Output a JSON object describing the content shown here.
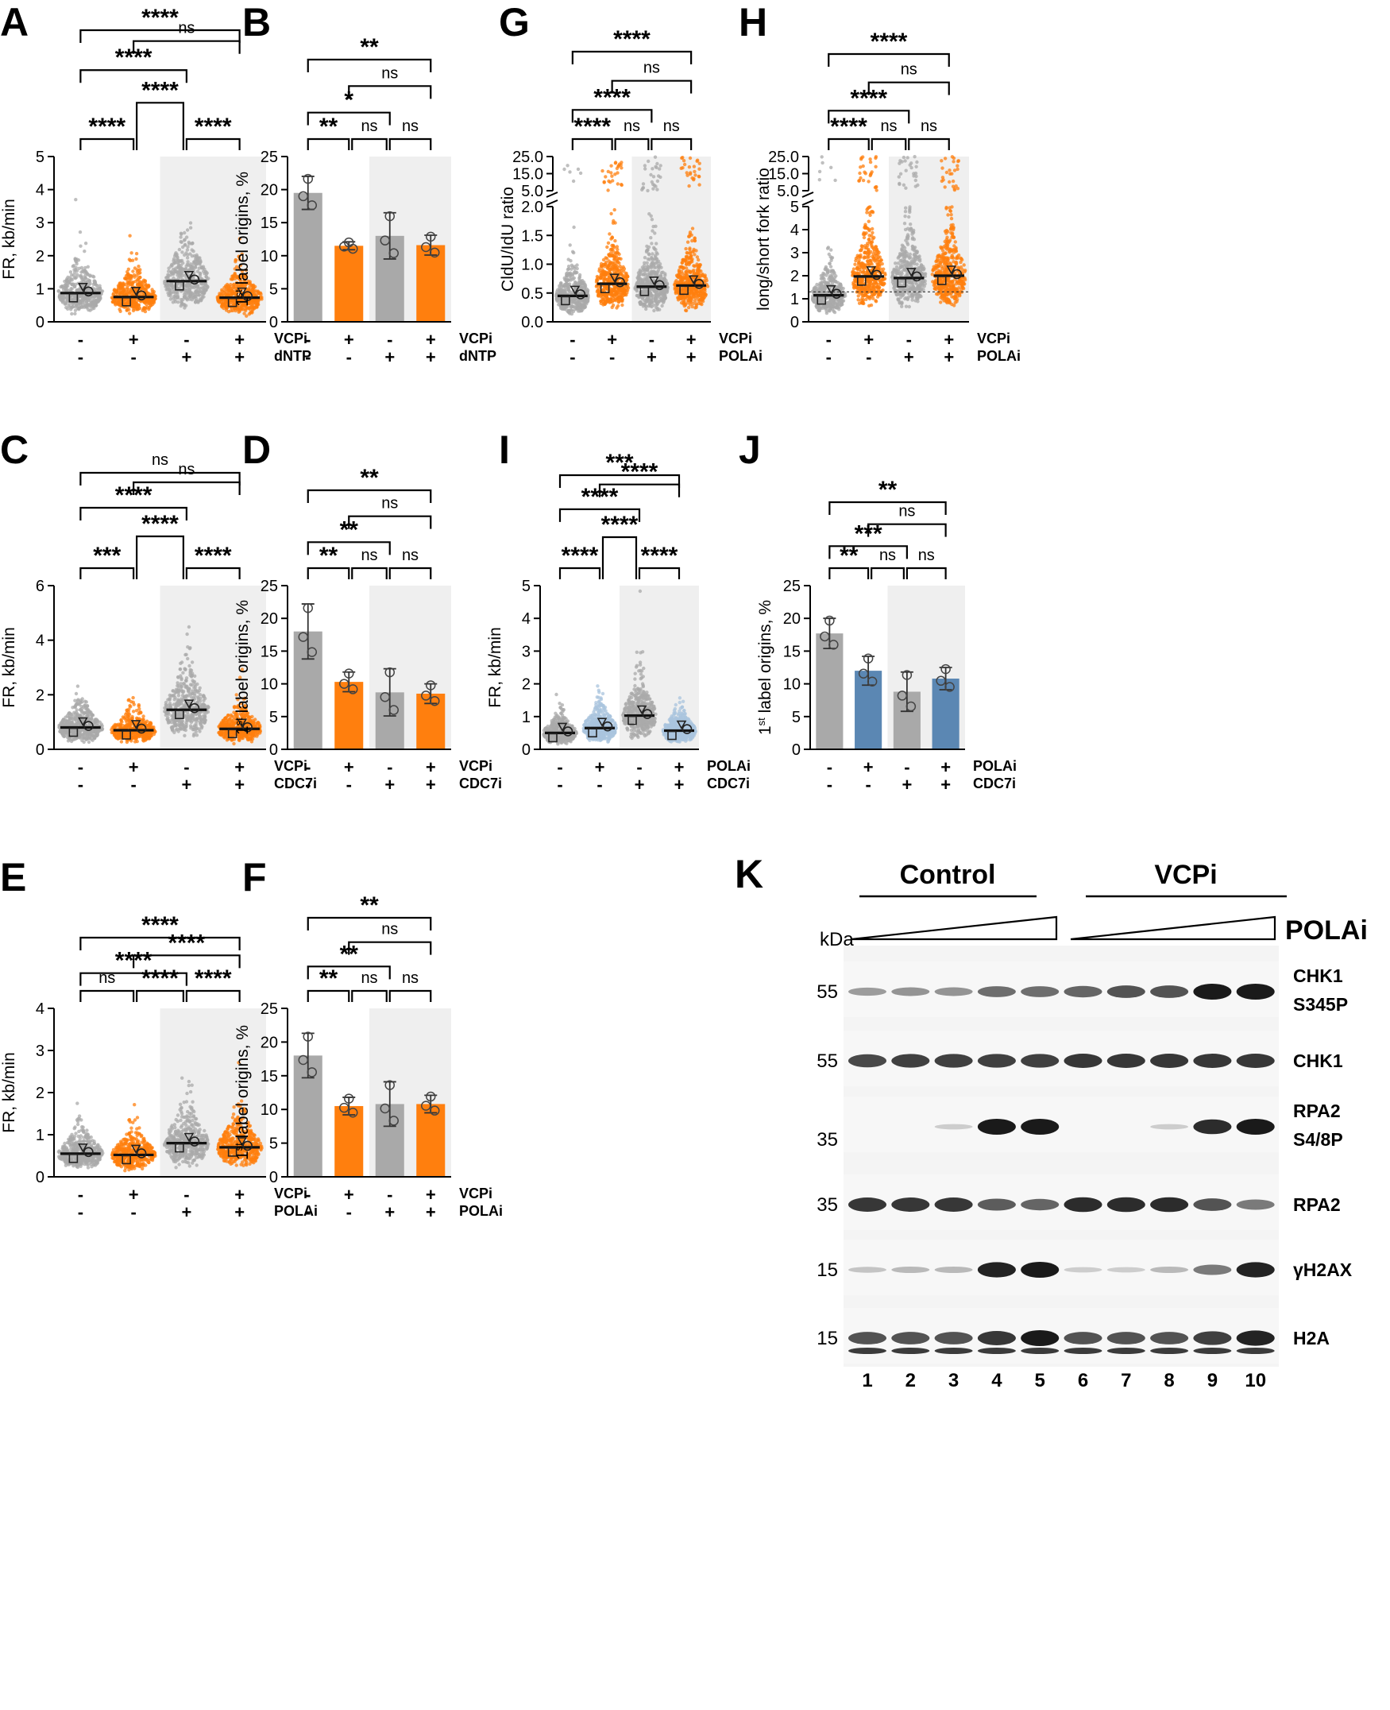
{
  "colors": {
    "gray": "#a9a9a9",
    "orange": "#ff7f0e",
    "blue": "#5b87b3",
    "lightblue": "#a9c4dd",
    "shade": "#efefef",
    "band": "#1a1a1a"
  },
  "chart_data": [
    {
      "id": "A",
      "panel_label": "A",
      "type": "scatter",
      "ylabel": "FR, kb/min",
      "yticks": [
        "0",
        "1",
        "2",
        "3",
        "4",
        "5"
      ],
      "ylim": [
        0,
        5
      ],
      "medians": [
        0.87,
        0.75,
        1.23,
        0.73
      ],
      "row_labels": [
        "VCPi",
        "dNTP"
      ],
      "signs": [
        [
          "-",
          "+",
          "-",
          "+"
        ],
        [
          "-",
          "-",
          "+",
          "+"
        ]
      ],
      "brackets": [
        {
          "i": 0,
          "j": 1,
          "label": "****"
        },
        {
          "i": 2,
          "j": 3,
          "label": "****"
        },
        {
          "i": 1,
          "j": 2,
          "label": "****"
        },
        {
          "i": 0,
          "j": 2,
          "label": "****"
        },
        {
          "i": 1,
          "j": 3,
          "label": "ns"
        },
        {
          "i": 0,
          "j": 3,
          "label": "****"
        }
      ]
    },
    {
      "id": "B",
      "panel_label": "B",
      "type": "bar",
      "ylabel": "1st label origins, %",
      "yticks": [
        "0",
        "5",
        "10",
        "15",
        "20",
        "25"
      ],
      "ylim": [
        0,
        25
      ],
      "values": [
        19.5,
        11.5,
        13,
        11.6
      ],
      "errors": [
        2.5,
        0.6,
        3.5,
        1.5
      ],
      "row_labels": [
        "VCPi",
        "dNTP"
      ],
      "signs": [
        [
          "-",
          "+",
          "-",
          "+"
        ],
        [
          "-",
          "-",
          "+",
          "+"
        ]
      ],
      "brackets": [
        {
          "i": 0,
          "j": 1,
          "label": "**"
        },
        {
          "i": 1,
          "j": 2,
          "label": "ns"
        },
        {
          "i": 2,
          "j": 3,
          "label": "ns"
        },
        {
          "i": 0,
          "j": 2,
          "label": "*"
        },
        {
          "i": 1,
          "j": 3,
          "label": "ns"
        },
        {
          "i": 0,
          "j": 3,
          "label": "**"
        }
      ]
    },
    {
      "id": "G",
      "panel_label": "G",
      "type": "scatter",
      "ylabel": "CldU/IdU ratio",
      "yticks": [
        "0.0",
        "0.5",
        "1.0",
        "1.5",
        "2.0"
      ],
      "ylim": [
        0,
        2
      ],
      "upper_ticks": [
        "5.0",
        "15.0",
        "25.0"
      ],
      "upper_range": [
        5,
        25
      ],
      "medians": [
        0.45,
        0.66,
        0.61,
        0.63
      ],
      "row_labels": [
        "VCPi",
        "POLAi"
      ],
      "signs": [
        [
          "-",
          "+",
          "-",
          "+"
        ],
        [
          "-",
          "-",
          "+",
          "+"
        ]
      ],
      "brackets": [
        {
          "i": 0,
          "j": 1,
          "label": "****"
        },
        {
          "i": 1,
          "j": 2,
          "label": "ns"
        },
        {
          "i": 2,
          "j": 3,
          "label": "ns"
        },
        {
          "i": 0,
          "j": 2,
          "label": "****"
        },
        {
          "i": 1,
          "j": 3,
          "label": "ns"
        },
        {
          "i": 0,
          "j": 3,
          "label": "****"
        }
      ]
    },
    {
      "id": "H",
      "panel_label": "H",
      "type": "scatter",
      "ylabel": "long/short fork ratio",
      "yticks": [
        "0",
        "1",
        "2",
        "3",
        "4",
        "5"
      ],
      "ylim": [
        0,
        5
      ],
      "upper_ticks": [
        "5.0",
        "15.0",
        "25.0"
      ],
      "upper_range": [
        5,
        25
      ],
      "medians": [
        1.15,
        1.97,
        1.9,
        2.0
      ],
      "reference_line": 1.3,
      "row_labels": [
        "VCPi",
        "POLAi"
      ],
      "signs": [
        [
          "-",
          "+",
          "-",
          "+"
        ],
        [
          "-",
          "-",
          "+",
          "+"
        ]
      ],
      "brackets": [
        {
          "i": 0,
          "j": 1,
          "label": "****"
        },
        {
          "i": 1,
          "j": 2,
          "label": "ns"
        },
        {
          "i": 2,
          "j": 3,
          "label": "ns"
        },
        {
          "i": 0,
          "j": 2,
          "label": "****"
        },
        {
          "i": 1,
          "j": 3,
          "label": "ns"
        },
        {
          "i": 0,
          "j": 3,
          "label": "****"
        }
      ]
    },
    {
      "id": "C",
      "panel_label": "C",
      "type": "scatter",
      "ylabel": "FR, kb/min",
      "yticks": [
        "0",
        "2",
        "4",
        "6"
      ],
      "ylim": [
        0,
        6
      ],
      "medians": [
        0.8,
        0.7,
        1.45,
        0.75
      ],
      "row_labels": [
        "VCPi",
        "CDC7i"
      ],
      "signs": [
        [
          "-",
          "+",
          "-",
          "+"
        ],
        [
          "-",
          "-",
          "+",
          "+"
        ]
      ],
      "brackets": [
        {
          "i": 0,
          "j": 1,
          "label": "***"
        },
        {
          "i": 2,
          "j": 3,
          "label": "****"
        },
        {
          "i": 1,
          "j": 2,
          "label": "****"
        },
        {
          "i": 0,
          "j": 2,
          "label": "****"
        },
        {
          "i": 1,
          "j": 3,
          "label": "ns"
        },
        {
          "i": 0,
          "j": 3,
          "label": "ns"
        }
      ]
    },
    {
      "id": "D",
      "panel_label": "D",
      "type": "bar",
      "ylabel": "1st label origins, %",
      "yticks": [
        "0",
        "5",
        "10",
        "15",
        "20",
        "25"
      ],
      "ylim": [
        0,
        25
      ],
      "values": [
        18,
        10.3,
        8.7,
        8.5
      ],
      "errors": [
        4.2,
        1.5,
        3.6,
        1.5
      ],
      "row_labels": [
        "VCPi",
        "CDC7i"
      ],
      "signs": [
        [
          "-",
          "+",
          "-",
          "+"
        ],
        [
          "-",
          "-",
          "+",
          "+"
        ]
      ],
      "brackets": [
        {
          "i": 0,
          "j": 1,
          "label": "**"
        },
        {
          "i": 1,
          "j": 2,
          "label": "ns"
        },
        {
          "i": 2,
          "j": 3,
          "label": "ns"
        },
        {
          "i": 0,
          "j": 2,
          "label": "**"
        },
        {
          "i": 1,
          "j": 3,
          "label": "ns"
        },
        {
          "i": 0,
          "j": 3,
          "label": "**"
        }
      ]
    },
    {
      "id": "I",
      "panel_label": "I",
      "type": "scatter",
      "ylabel": "FR, kb/min",
      "yticks": [
        "0",
        "1",
        "2",
        "3",
        "4",
        "5"
      ],
      "ylim": [
        0,
        5
      ],
      "medians": [
        0.5,
        0.65,
        1.03,
        0.57
      ],
      "row_labels": [
        "POLAi",
        "CDC7i"
      ],
      "signs": [
        [
          "-",
          "+",
          "-",
          "+"
        ],
        [
          "-",
          "-",
          "+",
          "+"
        ]
      ],
      "brackets": [
        {
          "i": 0,
          "j": 1,
          "label": "****"
        },
        {
          "i": 2,
          "j": 3,
          "label": "****"
        },
        {
          "i": 1,
          "j": 2,
          "label": "****"
        },
        {
          "i": 0,
          "j": 2,
          "label": "****"
        },
        {
          "i": 1,
          "j": 3,
          "label": "****"
        },
        {
          "i": 0,
          "j": 3,
          "label": "***"
        }
      ]
    },
    {
      "id": "J",
      "panel_label": "J",
      "type": "bar",
      "ylabel": "1st label origins, %",
      "yticks": [
        "0",
        "5",
        "10",
        "15",
        "20",
        "25"
      ],
      "ylim": [
        0,
        25
      ],
      "values": [
        17.7,
        12,
        8.8,
        10.8
      ],
      "errors": [
        2.3,
        2.2,
        3,
        1.7
      ],
      "row_labels": [
        "POLAi",
        "CDC7i"
      ],
      "signs": [
        [
          "-",
          "+",
          "-",
          "+"
        ],
        [
          "-",
          "-",
          "+",
          "+"
        ]
      ],
      "brackets": [
        {
          "i": 0,
          "j": 1,
          "label": "**"
        },
        {
          "i": 1,
          "j": 2,
          "label": "ns"
        },
        {
          "i": 2,
          "j": 3,
          "label": "ns"
        },
        {
          "i": 0,
          "j": 2,
          "label": "***"
        },
        {
          "i": 1,
          "j": 3,
          "label": "ns"
        },
        {
          "i": 0,
          "j": 3,
          "label": "**"
        }
      ]
    },
    {
      "id": "E",
      "panel_label": "E",
      "type": "scatter",
      "ylabel": "FR, kb/min",
      "yticks": [
        "0",
        "1",
        "2",
        "3",
        "4"
      ],
      "ylim": [
        0,
        4
      ],
      "medians": [
        0.55,
        0.52,
        0.8,
        0.7
      ],
      "row_labels": [
        "VCPi",
        "POLAi"
      ],
      "signs": [
        [
          "-",
          "+",
          "-",
          "+"
        ],
        [
          "-",
          "-",
          "+",
          "+"
        ]
      ],
      "brackets": [
        {
          "i": 0,
          "j": 1,
          "label": "ns"
        },
        {
          "i": 1,
          "j": 2,
          "label": "****"
        },
        {
          "i": 2,
          "j": 3,
          "label": "****"
        },
        {
          "i": 0,
          "j": 2,
          "label": "****"
        },
        {
          "i": 1,
          "j": 3,
          "label": "****"
        },
        {
          "i": 0,
          "j": 3,
          "label": "****"
        }
      ]
    },
    {
      "id": "F",
      "panel_label": "F",
      "type": "bar",
      "ylabel": "1st label origins, %",
      "yticks": [
        "0",
        "5",
        "10",
        "15",
        "20",
        "25"
      ],
      "ylim": [
        0,
        25
      ],
      "values": [
        18,
        10.5,
        10.8,
        10.8
      ],
      "errors": [
        3.3,
        1.3,
        3.3,
        1.3
      ],
      "row_labels": [
        "VCPi",
        "POLAi"
      ],
      "signs": [
        [
          "-",
          "+",
          "-",
          "+"
        ],
        [
          "-",
          "-",
          "+",
          "+"
        ]
      ],
      "brackets": [
        {
          "i": 0,
          "j": 1,
          "label": "**"
        },
        {
          "i": 1,
          "j": 2,
          "label": "ns"
        },
        {
          "i": 2,
          "j": 3,
          "label": "ns"
        },
        {
          "i": 0,
          "j": 2,
          "label": "**"
        },
        {
          "i": 1,
          "j": 3,
          "label": "ns"
        },
        {
          "i": 0,
          "j": 3,
          "label": "**"
        }
      ]
    }
  ],
  "blot": {
    "panel_label": "K",
    "group_labels": [
      "Control",
      "VCPi"
    ],
    "treatment_label": "POLAi",
    "kda_label": "kDa",
    "lanes": [
      "1",
      "2",
      "3",
      "4",
      "5",
      "6",
      "7",
      "8",
      "9",
      "10"
    ],
    "bands": [
      {
        "mw": "55",
        "label": [
          "CHK1",
          "S345P"
        ],
        "intensity": [
          0.3,
          0.35,
          0.35,
          0.55,
          0.55,
          0.6,
          0.7,
          0.7,
          1.0,
          1.0
        ]
      },
      {
        "mw": "55",
        "label": [
          "CHK1"
        ],
        "intensity": [
          0.75,
          0.8,
          0.8,
          0.8,
          0.8,
          0.85,
          0.85,
          0.85,
          0.85,
          0.85
        ]
      },
      {
        "mw": "35",
        "label": [
          "RPA2",
          "S4/8P"
        ],
        "intensity": [
          0,
          0,
          0.05,
          1.0,
          1.0,
          0,
          0,
          0.05,
          0.9,
          1.0
        ]
      },
      {
        "mw": "35",
        "label": [
          "RPA2"
        ],
        "intensity": [
          0.85,
          0.85,
          0.85,
          0.65,
          0.6,
          0.9,
          0.9,
          0.9,
          0.7,
          0.5
        ]
      },
      {
        "mw": "15",
        "label": [
          "γH2AX"
        ],
        "intensity": [
          0.1,
          0.15,
          0.15,
          0.95,
          1.0,
          0.05,
          0.05,
          0.15,
          0.5,
          0.95
        ]
      },
      {
        "mw": "15",
        "label": [
          "H2A"
        ],
        "intensity": [
          0.7,
          0.7,
          0.7,
          0.85,
          1.0,
          0.7,
          0.7,
          0.7,
          0.8,
          0.95
        ]
      }
    ]
  }
}
